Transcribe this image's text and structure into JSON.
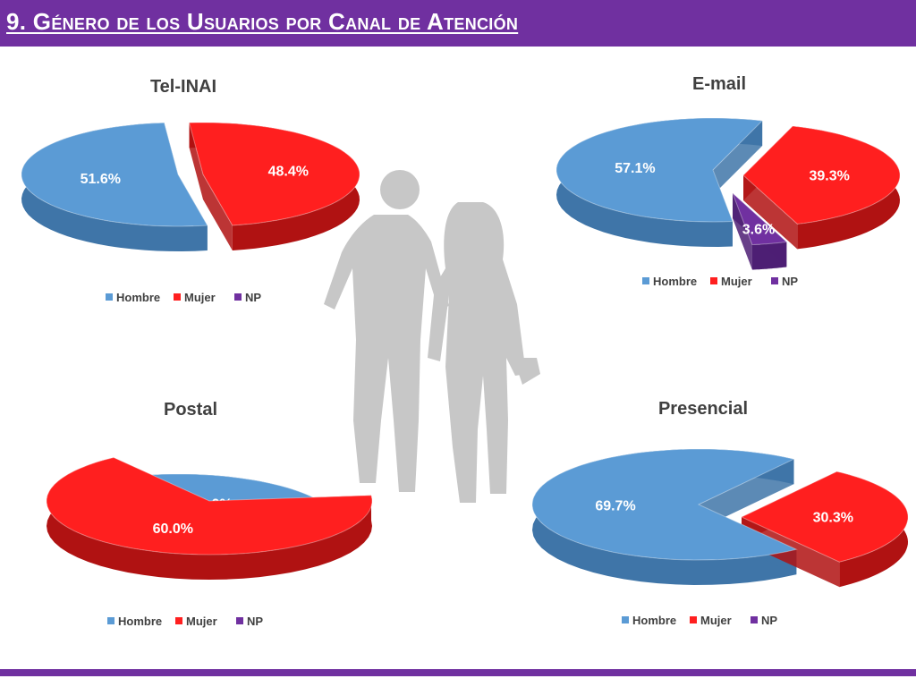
{
  "header": {
    "title": "9. Género de los Usuarios por Canal de Atención"
  },
  "colors": {
    "hombre": "#5b9bd5",
    "mujer": "#ff1f1f",
    "np": "#7030a0",
    "accent": "#7030a0"
  },
  "legend": [
    "Hombre",
    "Mujer",
    "NP"
  ],
  "chart_data": [
    {
      "type": "pie",
      "title": "Tel-INAI",
      "categories": [
        "Hombre",
        "Mujer",
        "NP"
      ],
      "values": [
        51.6,
        48.4,
        0
      ],
      "data_labels": [
        "51.6%",
        "48.4%",
        ""
      ],
      "legend": "bottom"
    },
    {
      "type": "pie",
      "title": "E-mail",
      "categories": [
        "Hombre",
        "Mujer",
        "NP"
      ],
      "values": [
        57.1,
        39.3,
        3.6
      ],
      "data_labels": [
        "57.1%",
        "39.3%",
        "3.6%"
      ],
      "legend": "bottom"
    },
    {
      "type": "pie",
      "title": "Postal",
      "categories": [
        "Hombre",
        "Mujer",
        "NP"
      ],
      "values": [
        30.0,
        60.0,
        0
      ],
      "data_labels": [
        "30.0%",
        "60.0%",
        ""
      ],
      "legend": "bottom"
    },
    {
      "type": "pie",
      "title": "Presencial",
      "categories": [
        "Hombre",
        "Mujer",
        "NP"
      ],
      "values": [
        69.7,
        30.3,
        0
      ],
      "data_labels": [
        "69.7%",
        "30.3%",
        ""
      ],
      "legend": "bottom"
    }
  ]
}
